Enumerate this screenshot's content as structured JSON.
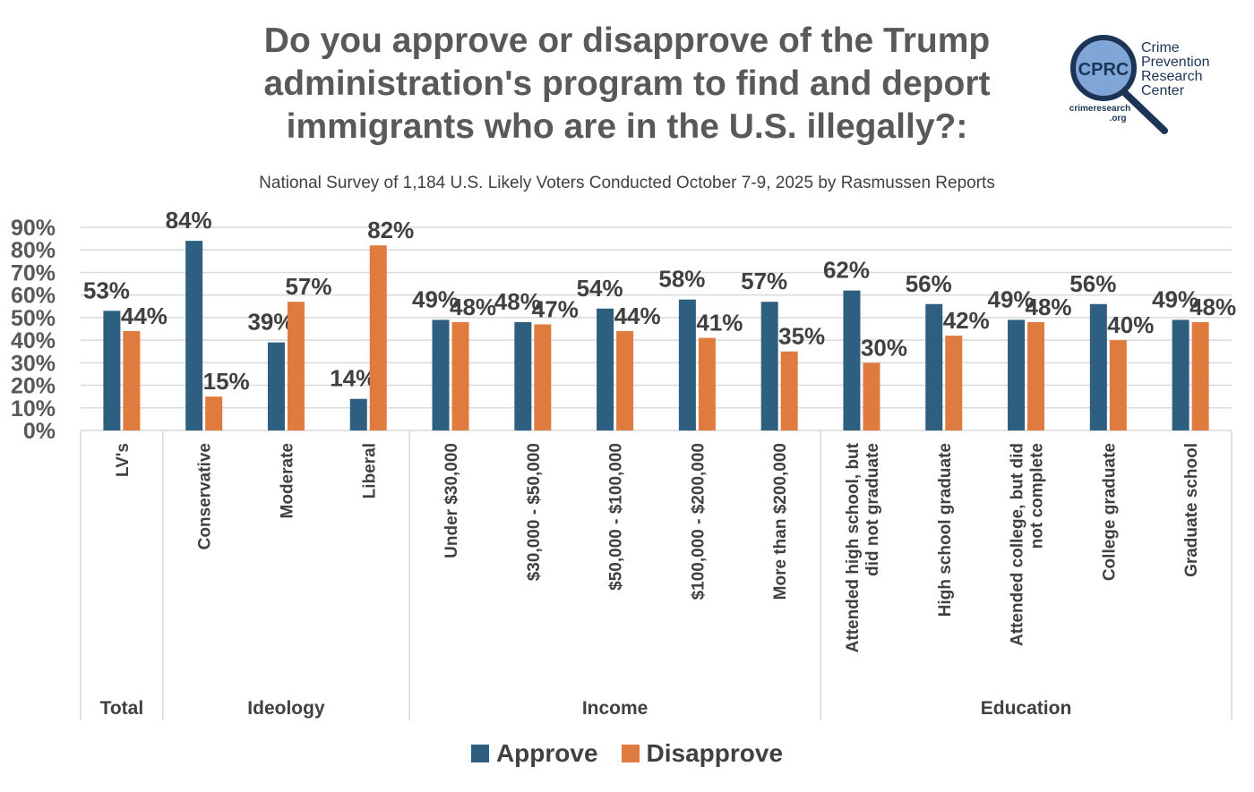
{
  "header": {
    "title_lines": [
      "Do you approve or disapprove of the Trump",
      "administration's program to find and deport",
      "immigrants who are in the U.S. illegally?:"
    ],
    "subtitle": "National Survey of 1,184 U.S. Likely Voters Conducted October 7-9, 2025 by Rasmussen Reports"
  },
  "logo": {
    "badge": "CPRC",
    "name_lines": [
      "Crime",
      "Prevention",
      "Research",
      "Center"
    ],
    "url_lines": [
      "crimeresearch",
      ".org"
    ]
  },
  "colors": {
    "approve": "#2E5F80",
    "disapprove": "#E07B3F",
    "text": "#404040",
    "grid": "#D9D9D9"
  },
  "chart_data": {
    "type": "bar",
    "title": "Do you approve or disapprove of the Trump administration's program to find and deport immigrants who are in the U.S. illegally?:",
    "subtitle": "National Survey of 1,184 U.S. Likely Voters Conducted October 7-9, 2025 by Rasmussen Reports",
    "xlabel": "",
    "ylabel": "",
    "ylim": [
      0,
      90
    ],
    "yticks": [
      "0%",
      "10%",
      "20%",
      "30%",
      "40%",
      "50%",
      "60%",
      "70%",
      "80%",
      "90%"
    ],
    "grid": true,
    "legend_position": "bottom",
    "categories": [
      [
        "LV's"
      ],
      [
        "Conservative"
      ],
      [
        "Moderate"
      ],
      [
        "Liberal"
      ],
      [
        "Under $30,000"
      ],
      [
        "$30,000 - $50,000"
      ],
      [
        "$50,000 - $100,000"
      ],
      [
        "$100,000 - $200,000"
      ],
      [
        "More than $200,000"
      ],
      [
        "Attended high school, but",
        "did not graduate"
      ],
      [
        "High school graduate"
      ],
      [
        "Attended college, but did",
        "not complete"
      ],
      [
        "College graduate"
      ],
      [
        "Graduate school"
      ]
    ],
    "groups": [
      {
        "label": "Total",
        "count": 1
      },
      {
        "label": "Ideology",
        "count": 3
      },
      {
        "label": "Income",
        "count": 5
      },
      {
        "label": "Education",
        "count": 5
      }
    ],
    "series": [
      {
        "name": "Approve",
        "values": [
          53,
          84,
          39,
          14,
          49,
          48,
          54,
          58,
          57,
          62,
          56,
          49,
          56,
          49
        ]
      },
      {
        "name": "Disapprove",
        "values": [
          44,
          15,
          57,
          82,
          48,
          47,
          44,
          41,
          35,
          30,
          42,
          48,
          40,
          48
        ]
      }
    ],
    "value_suffix": "%"
  }
}
